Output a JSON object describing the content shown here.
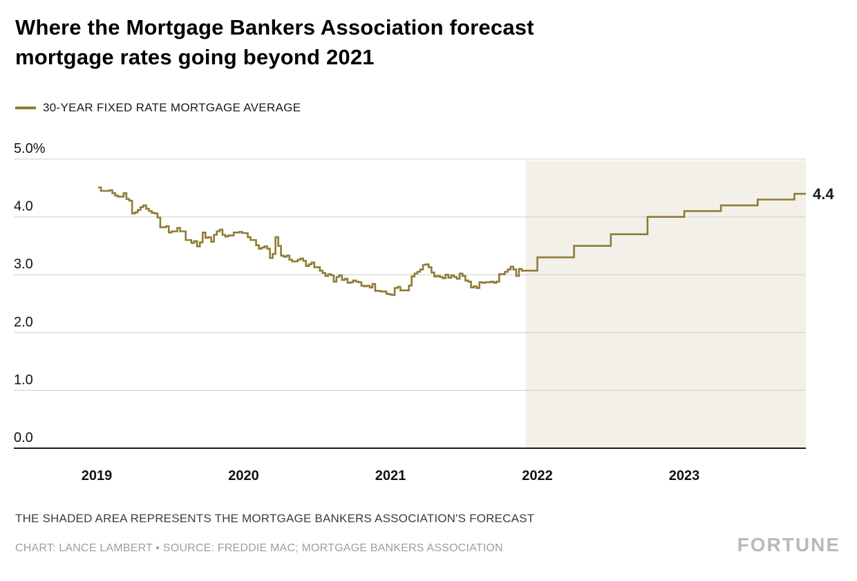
{
  "title": {
    "line1": "Where the Mortgage Bankers Association forecast",
    "line2": "mortgage rates going beyond 2021"
  },
  "legend": {
    "label": "30-YEAR FIXED RATE MORTGAGE AVERAGE"
  },
  "footnote": "THE SHADED AREA REPRESENTS THE MORTGAGE BANKERS ASSOCIATION'S FORECAST",
  "credit": "CHART: LANCE LAMBERT • SOURCE: FREDDIE MAC; MORTGAGE BANKERS ASSOCIATION",
  "brand": "FORTUNE",
  "chart_data": {
    "type": "line",
    "step": true,
    "title": "Where the Mortgage Bankers Association forecast mortgage rates going beyond 2021",
    "series_name": "30-year fixed rate mortgage average",
    "ylabel": "30-year fixed rate mortgage average (%)",
    "ylim": [
      0,
      5
    ],
    "xlim": [
      2019,
      2023.85
    ],
    "y_ticks": [
      5,
      4,
      3,
      2,
      1,
      0
    ],
    "y_tick_labels": [
      "5.0%",
      "4.0",
      "3.0",
      "2.0",
      "1.0",
      "0.0"
    ],
    "x_ticks": [
      2019,
      2020,
      2021,
      2022,
      2023
    ],
    "forecast_start": 2021.92,
    "end_label": "4.4",
    "legend_position": "top-left",
    "grid": true,
    "colors": {
      "line": "#8e7b34",
      "forecast_shade": "#f2f0e9",
      "grid": "#cccccc",
      "axis": "#1a1a1a"
    },
    "historical_weekly": {
      "2019": [
        4.51,
        4.45,
        4.45,
        4.45,
        4.46,
        4.41,
        4.37,
        4.35,
        4.35,
        4.41,
        4.31,
        4.28,
        4.06,
        4.08,
        4.12,
        4.17,
        4.2,
        4.14,
        4.1,
        4.07,
        4.06,
        3.99,
        3.82,
        3.82,
        3.84,
        3.73,
        3.75,
        3.75,
        3.81,
        3.75,
        3.75,
        3.6,
        3.6,
        3.55,
        3.58,
        3.49,
        3.56,
        3.73,
        3.64,
        3.65,
        3.57,
        3.69,
        3.75,
        3.78,
        3.69,
        3.66,
        3.68,
        3.68,
        3.73,
        3.73,
        3.74,
        3.72
      ],
      "2020": [
        3.72,
        3.65,
        3.6,
        3.6,
        3.51,
        3.45,
        3.47,
        3.49,
        3.45,
        3.29,
        3.36,
        3.65,
        3.5,
        3.33,
        3.31,
        3.33,
        3.26,
        3.23,
        3.23,
        3.26,
        3.28,
        3.24,
        3.15,
        3.18,
        3.21,
        3.13,
        3.13,
        3.07,
        3.03,
        2.98,
        3.01,
        2.99,
        2.88,
        2.96,
        2.99,
        2.91,
        2.93,
        2.86,
        2.87,
        2.9,
        2.88,
        2.87,
        2.81,
        2.8,
        2.81,
        2.78,
        2.84,
        2.72,
        2.72,
        2.71,
        2.71,
        2.67,
        2.66
      ],
      "2021": [
        2.65,
        2.77,
        2.79,
        2.73,
        2.73,
        2.73,
        2.81,
        2.97,
        3.02,
        3.05,
        3.09,
        3.17,
        3.18,
        3.13,
        3.04,
        2.97,
        2.98,
        2.96,
        2.94,
        3.0,
        2.95,
        2.99,
        2.96,
        2.93,
        3.02,
        2.98,
        2.9,
        2.88,
        2.78,
        2.8,
        2.77,
        2.87,
        2.86,
        2.87,
        2.87,
        2.88,
        2.86,
        2.88,
        3.01,
        3.01,
        3.05,
        3.09,
        3.14,
        3.09,
        2.98,
        3.1,
        3.07
      ]
    },
    "forecast_quarterly": [
      [
        2022.0,
        3.3
      ],
      [
        2022.25,
        3.5
      ],
      [
        2022.5,
        3.7
      ],
      [
        2022.75,
        4.0
      ],
      [
        2023.0,
        4.1
      ],
      [
        2023.25,
        4.2
      ],
      [
        2023.5,
        4.3
      ],
      [
        2023.75,
        4.4
      ]
    ]
  }
}
